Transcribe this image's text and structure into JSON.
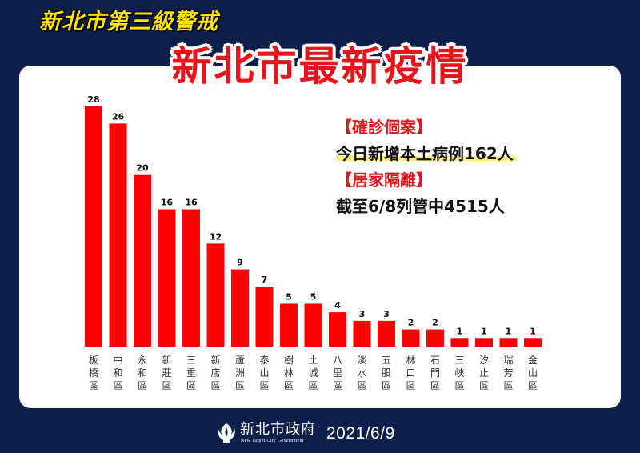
{
  "header": {
    "badge": "新北市第三級警戒",
    "title": "新北市最新疫情"
  },
  "info": {
    "confirmed_head": "【確診個案】",
    "confirmed_text": "今日新增本土病例162人",
    "quarantine_head": "【居家隔離】",
    "quarantine_text": "截至6/8列管中4515人"
  },
  "footer": {
    "org_name": "新北市政府",
    "org_sub": "New Taipei City Government",
    "date": "2021/6/9"
  },
  "colors": {
    "bar": "#ff0000",
    "accent": "#e8141b",
    "background": "#0b1f4a",
    "highlight": "#fff176"
  },
  "chart_data": {
    "type": "bar",
    "categories": [
      "板橋區",
      "中和區",
      "永和區",
      "新莊區",
      "三重區",
      "新店區",
      "蘆洲區",
      "泰山區",
      "樹林區",
      "土城區",
      "八里區",
      "淡水區",
      "五股區",
      "林口區",
      "石門區",
      "三峽區",
      "汐止區",
      "瑞芳區",
      "金山區"
    ],
    "values": [
      28,
      26,
      20,
      16,
      16,
      12,
      9,
      7,
      5,
      5,
      4,
      3,
      3,
      2,
      2,
      1,
      1,
      1,
      1
    ],
    "data_labels": true,
    "title": "",
    "xlabel": "",
    "ylabel": "",
    "ylim": [
      0,
      28
    ],
    "grid": false,
    "legend": false
  }
}
